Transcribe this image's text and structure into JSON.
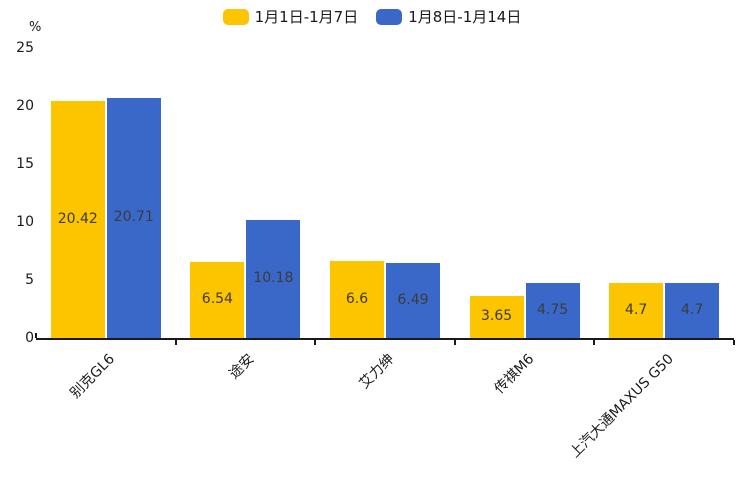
{
  "chart_data": {
    "type": "bar",
    "title": "",
    "xlabel": "",
    "ylabel": "%",
    "categories": [
      "别克GL6",
      "途安",
      "艾力绅",
      "传祺M6",
      "上汽大通MAXUS G50"
    ],
    "series": [
      {
        "name": "1月1日-1月7日",
        "color": "#FCC500",
        "values": [
          20.42,
          6.54,
          6.6,
          3.65,
          4.7
        ]
      },
      {
        "name": "1月8日-1月14日",
        "color": "#3A68C8",
        "values": [
          20.71,
          10.18,
          6.49,
          4.75,
          4.7
        ]
      }
    ],
    "y_ticks": [
      0,
      5,
      10,
      15,
      20,
      25
    ],
    "ylim": [
      0,
      25
    ],
    "grid": false,
    "legend_position": "top",
    "value_labels_shown": true,
    "value_label_color": "#3b3b3b",
    "axis_color": "#1a1a1a"
  }
}
